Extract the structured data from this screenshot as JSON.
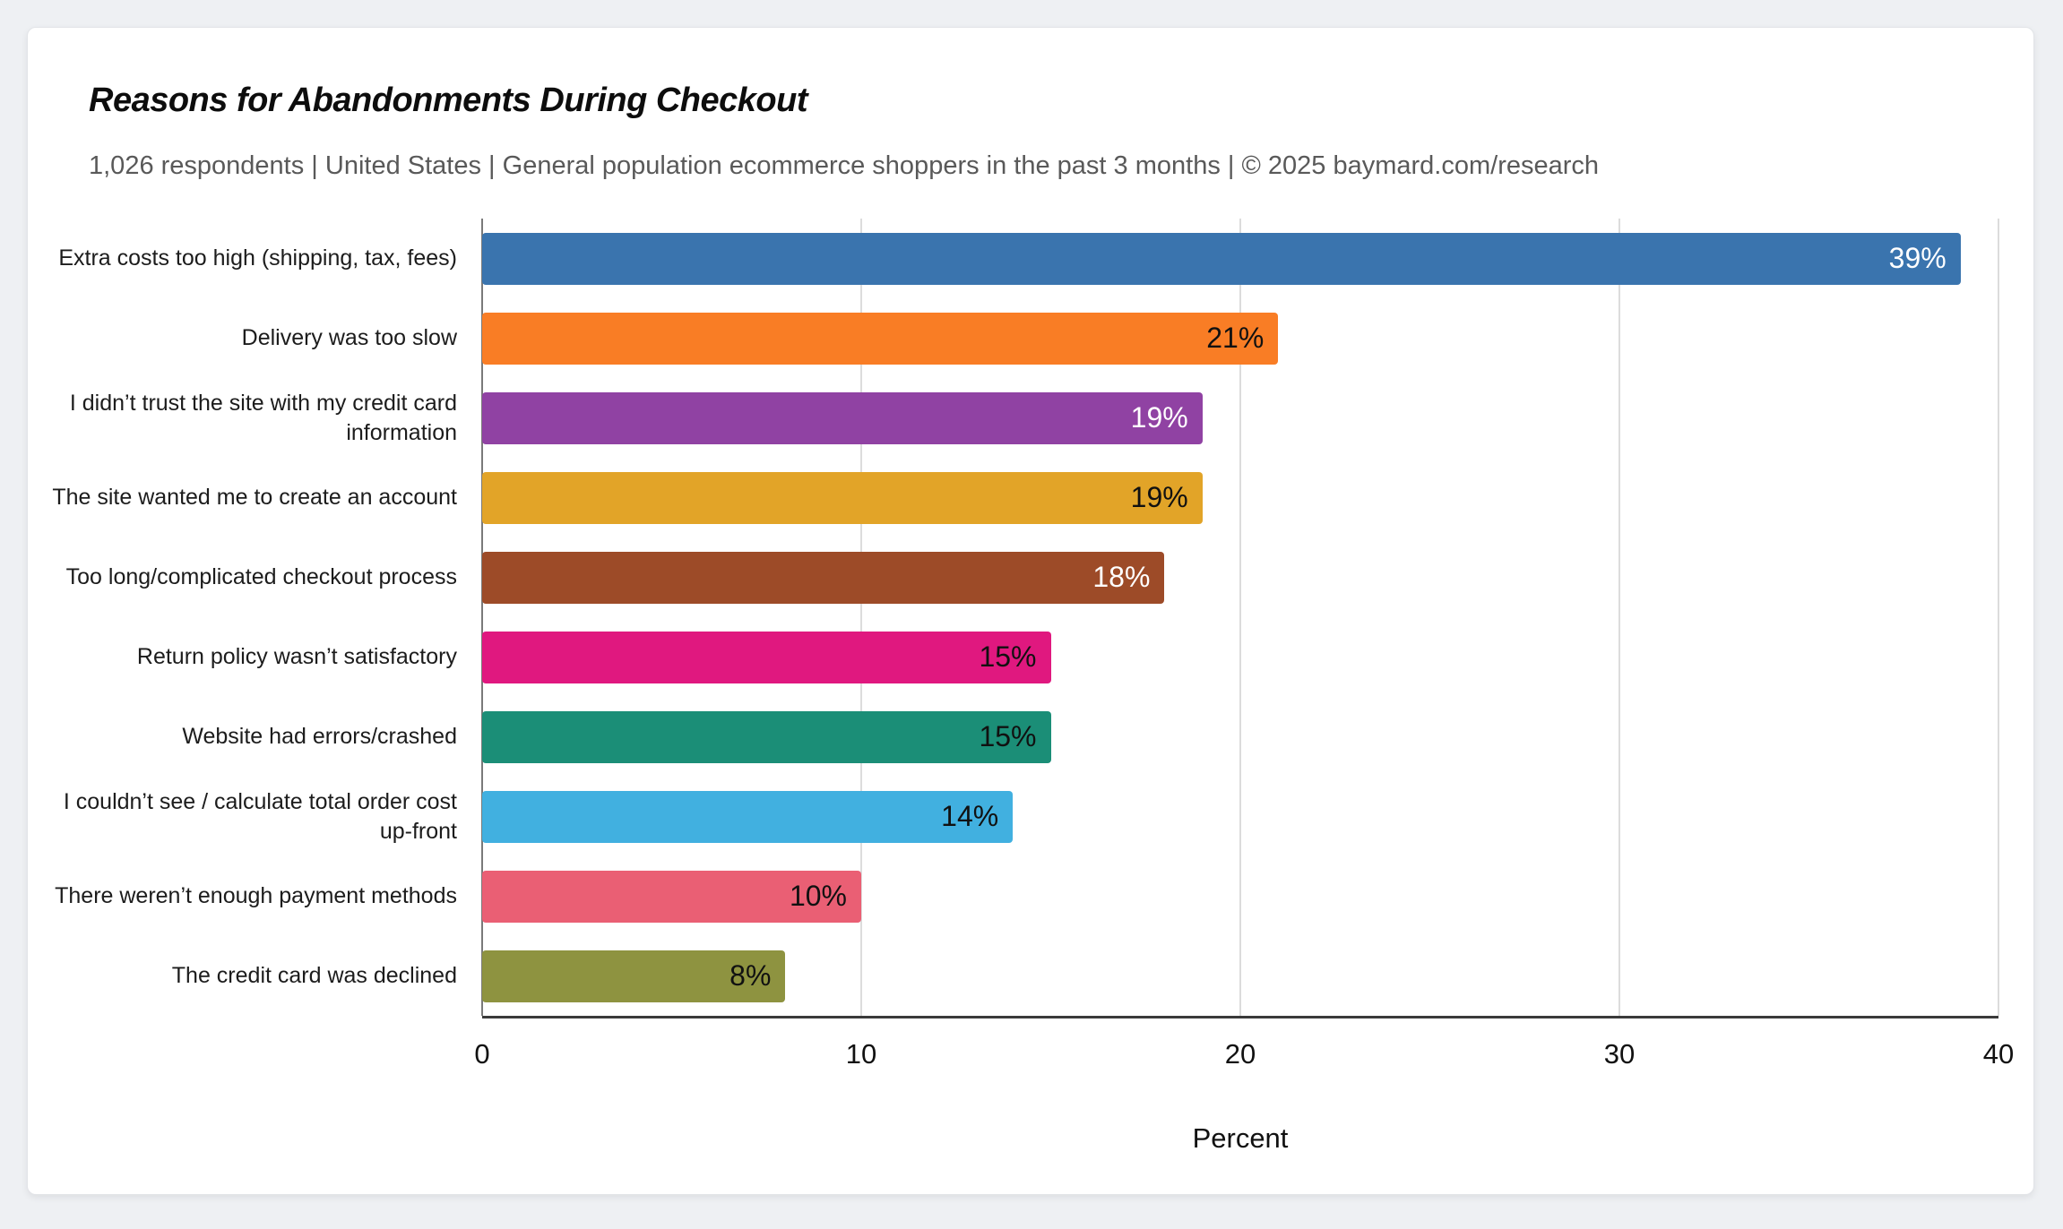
{
  "chart_data": {
    "type": "bar",
    "orientation": "horizontal",
    "title": "Reasons for Abandonments During Checkout",
    "subtitle": "1,026 respondents  |  United States  |  General population ecommerce shoppers in the past 3 months | © 2025 baymard.com/research",
    "xlabel": "Percent",
    "xlim": [
      0,
      40
    ],
    "x_ticks": [
      0,
      10,
      20,
      30,
      40
    ],
    "grid": "vertical gridlines at each x tick, light gray",
    "legend": "none",
    "categories": [
      "Extra costs too high (shipping, tax, fees)",
      "Delivery was too slow",
      "I didn’t trust the site with my credit card information",
      "The site wanted me to create an account",
      "Too long/complicated checkout process",
      "Return policy wasn’t satisfactory",
      "Website had errors/crashed",
      "I couldn’t see / calculate total order cost up-front",
      "There weren’t enough payment methods",
      "The credit card was declined"
    ],
    "values": [
      39,
      21,
      19,
      19,
      18,
      15,
      15,
      14,
      10,
      8
    ],
    "value_labels": [
      "39%",
      "21%",
      "19%",
      "19%",
      "18%",
      "15%",
      "15%",
      "14%",
      "10%",
      "8%"
    ],
    "bar_colors": [
      "#3a74ae",
      "#f97d25",
      "#9042a3",
      "#e2a428",
      "#9d4b28",
      "#e0187f",
      "#1b8e77",
      "#41b0e0",
      "#ea5f74",
      "#8e9340"
    ],
    "value_label_colors": [
      "#ffffff",
      "#111111",
      "#ffffff",
      "#111111",
      "#ffffff",
      "#111111",
      "#111111",
      "#111111",
      "#111111",
      "#111111"
    ]
  },
  "colors": {
    "page_bg": "#eef0f3",
    "card_bg": "#ffffff",
    "card_border": "#e2e4e8",
    "gridline": "#dcdcdc",
    "x_axis_line": "#3a3a3a",
    "y_axis_line": "#7a7a7a",
    "title_text": "#0d0d0d",
    "subtitle_text": "#595959",
    "category_text": "#1c1c1c"
  }
}
